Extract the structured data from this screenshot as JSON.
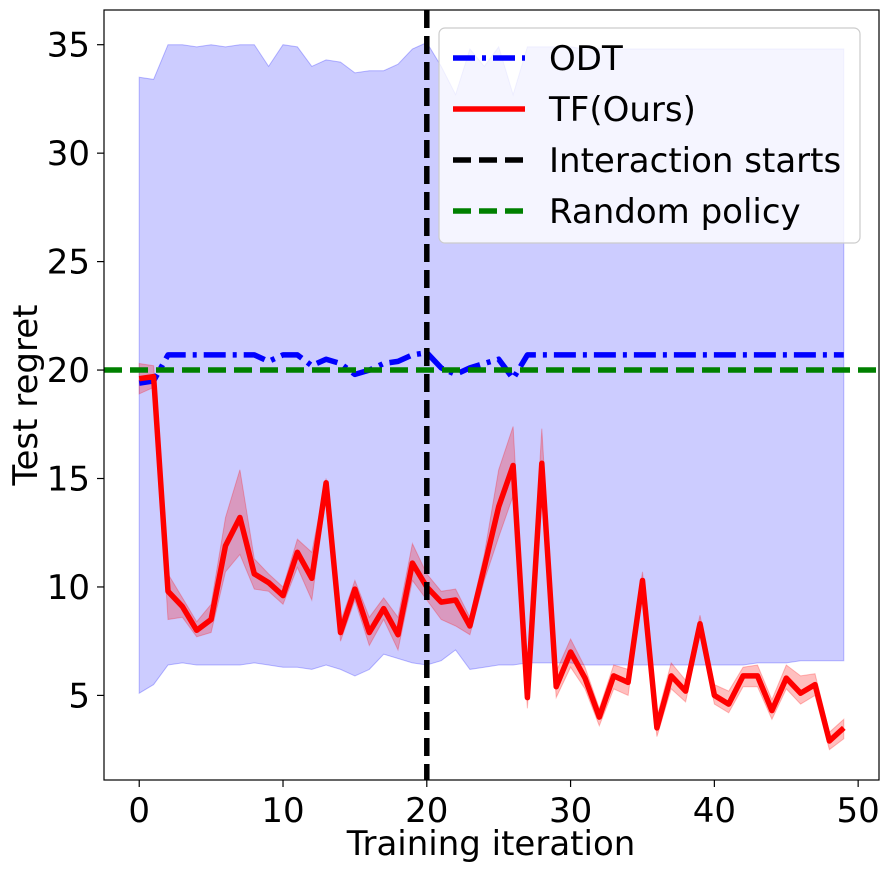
{
  "chart_data": {
    "type": "line",
    "title": "",
    "xlabel": "Training iteration",
    "ylabel": "Test regret",
    "xlim": [
      -2.45,
      51.45
    ],
    "ylim": [
      1.1,
      36.6
    ],
    "xticks": [
      0,
      10,
      20,
      30,
      40,
      50
    ],
    "yticks": [
      5,
      10,
      15,
      20,
      25,
      30,
      35
    ],
    "grid": false,
    "legend_position": "top-right",
    "x": [
      0,
      1,
      2,
      3,
      4,
      5,
      6,
      7,
      8,
      9,
      10,
      11,
      12,
      13,
      14,
      15,
      16,
      17,
      18,
      19,
      20,
      21,
      22,
      23,
      24,
      25,
      26,
      27,
      28,
      29,
      30,
      31,
      32,
      33,
      34,
      35,
      36,
      37,
      38,
      39,
      40,
      41,
      42,
      43,
      44,
      45,
      46,
      47,
      48,
      49
    ],
    "series": [
      {
        "name": "ODT",
        "color": "#0000ff",
        "style": "dashdot",
        "values": [
          19.4,
          19.5,
          20.7,
          20.7,
          20.7,
          20.7,
          20.7,
          20.7,
          20.7,
          20.4,
          20.7,
          20.7,
          20.2,
          20.5,
          20.3,
          19.8,
          20.0,
          20.3,
          20.4,
          20.7,
          20.8,
          20.1,
          19.8,
          20.1,
          20.3,
          20.5,
          19.6,
          20.7,
          20.7,
          20.7,
          20.7,
          20.7,
          20.7,
          20.7,
          20.7,
          20.7,
          20.7,
          20.7,
          20.7,
          20.7,
          20.7,
          20.7,
          20.7,
          20.7,
          20.7,
          20.7,
          20.7,
          20.7,
          20.7,
          20.7
        ],
        "band_upper": [
          33.5,
          33.4,
          35.0,
          35.0,
          34.9,
          35.0,
          34.9,
          35.0,
          35.0,
          34.0,
          35.0,
          34.9,
          34.0,
          34.3,
          34.2,
          33.7,
          33.8,
          33.8,
          34.1,
          34.8,
          35.1,
          34.0,
          32.7,
          34.8,
          34.0,
          34.9,
          32.7,
          34.9,
          34.9,
          34.9,
          34.9,
          34.8,
          34.8,
          34.8,
          34.8,
          34.8,
          34.8,
          34.8,
          34.8,
          34.8,
          34.8,
          34.8,
          34.8,
          34.8,
          34.8,
          34.8,
          34.8,
          34.8,
          34.8,
          34.8
        ],
        "band_lower": [
          5.1,
          5.5,
          6.4,
          6.5,
          6.4,
          6.4,
          6.4,
          6.4,
          6.5,
          6.4,
          6.3,
          6.3,
          6.2,
          6.4,
          6.2,
          5.9,
          6.2,
          6.9,
          6.7,
          6.5,
          6.4,
          6.6,
          7.1,
          6.2,
          6.3,
          6.4,
          6.4,
          6.5,
          6.5,
          6.5,
          6.5,
          6.4,
          6.4,
          6.4,
          6.4,
          6.4,
          6.4,
          6.4,
          6.4,
          6.4,
          6.4,
          6.4,
          6.4,
          6.5,
          6.5,
          6.5,
          6.6,
          6.6,
          6.6,
          6.6
        ]
      },
      {
        "name": "TF(Ours)",
        "color": "#ff0000",
        "style": "solid",
        "values": [
          19.6,
          19.7,
          9.8,
          9.1,
          8.0,
          8.5,
          11.9,
          13.2,
          10.6,
          10.2,
          9.6,
          11.6,
          10.4,
          14.8,
          7.9,
          9.9,
          7.9,
          9.0,
          7.8,
          11.1,
          10.0,
          9.3,
          9.4,
          8.2,
          10.9,
          13.7,
          15.6,
          4.9,
          15.7,
          5.4,
          7.0,
          5.8,
          4.0,
          5.9,
          5.6,
          10.3,
          3.5,
          5.9,
          5.2,
          8.3,
          5.0,
          4.6,
          5.9,
          5.9,
          4.3,
          5.8,
          5.1,
          5.5,
          2.9,
          3.5
        ],
        "band_upper": [
          20.3,
          20.2,
          10.6,
          9.5,
          8.4,
          9.2,
          13.2,
          15.4,
          11.3,
          10.6,
          10.0,
          12.2,
          11.6,
          15.0,
          8.4,
          10.3,
          8.6,
          9.5,
          8.6,
          12.0,
          10.6,
          9.8,
          9.9,
          8.6,
          11.5,
          15.4,
          17.4,
          5.6,
          17.3,
          6.1,
          7.6,
          6.3,
          4.4,
          6.4,
          6.2,
          10.7,
          4.0,
          6.5,
          5.7,
          8.7,
          5.5,
          5.2,
          6.3,
          6.4,
          4.8,
          6.4,
          5.9,
          6.0,
          3.3,
          3.9
        ],
        "band_lower": [
          18.9,
          19.2,
          8.5,
          8.6,
          7.7,
          7.9,
          10.7,
          11.5,
          9.9,
          9.8,
          9.2,
          10.9,
          9.4,
          14.2,
          7.5,
          9.4,
          7.3,
          8.5,
          7.1,
          10.3,
          9.4,
          8.5,
          8.2,
          7.8,
          10.3,
          12.3,
          14.2,
          4.4,
          14.7,
          4.9,
          6.3,
          5.3,
          3.6,
          5.3,
          5.0,
          9.8,
          3.1,
          5.3,
          4.7,
          7.8,
          4.6,
          4.2,
          5.4,
          5.4,
          3.9,
          5.3,
          4.6,
          5.0,
          2.5,
          3.0
        ]
      }
    ],
    "reference_lines": [
      {
        "name": "Interaction starts",
        "orientation": "vertical",
        "value": 20,
        "color": "#000000",
        "style": "dashed"
      },
      {
        "name": "Random policy",
        "orientation": "horizontal",
        "value": 20,
        "color": "#008000",
        "style": "dashed"
      }
    ]
  }
}
